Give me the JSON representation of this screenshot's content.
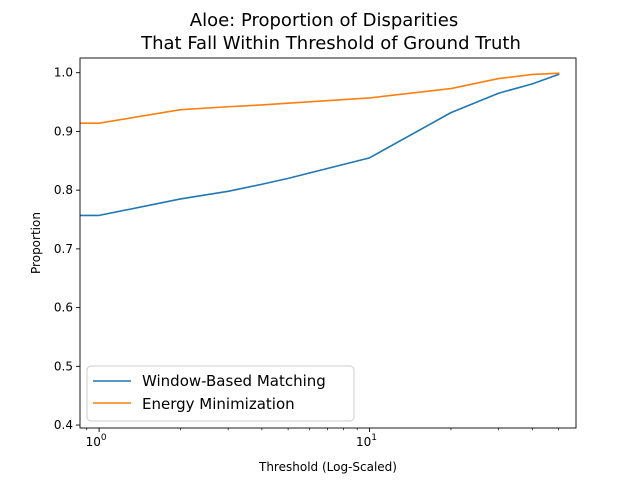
{
  "chart_data": {
    "type": "line",
    "title_lines": [
      "Aloe: Proportion of Disparities",
      "That Fall Within Threshold of Ground Truth"
    ],
    "xlabel": "Threshold (Log-Scaled)",
    "ylabel": "Proportion",
    "xscale": "log",
    "xlim": [
      0.85,
      58
    ],
    "ylim": [
      0.395,
      1.025
    ],
    "x_ticks": [
      {
        "value": 1,
        "base": "10",
        "exp": "0"
      },
      {
        "value": 10,
        "base": "10",
        "exp": "1"
      }
    ],
    "y_ticks": [
      {
        "value": 0.4,
        "label": "0.4"
      },
      {
        "value": 0.5,
        "label": "0.5"
      },
      {
        "value": 0.6,
        "label": "0.6"
      },
      {
        "value": 0.7,
        "label": "0.7"
      },
      {
        "value": 0.8,
        "label": "0.8"
      },
      {
        "value": 0.9,
        "label": "0.9"
      },
      {
        "value": 1.0,
        "label": "1.0"
      }
    ],
    "grid": false,
    "legend_position": "lower-left",
    "series": [
      {
        "name": "Window-Based Matching",
        "color": "#1f77b4",
        "x": [
          0,
          1,
          2,
          3,
          4,
          5,
          10,
          20,
          30,
          40,
          50
        ],
        "y": [
          0.757,
          0.757,
          0.785,
          0.798,
          0.81,
          0.82,
          0.855,
          0.932,
          0.965,
          0.981,
          0.997
        ]
      },
      {
        "name": "Energy Minimization",
        "color": "#ff7f0e",
        "x": [
          0,
          1,
          2,
          3,
          4,
          5,
          10,
          20,
          30,
          40,
          50
        ],
        "y": [
          0.914,
          0.914,
          0.937,
          0.942,
          0.945,
          0.948,
          0.957,
          0.973,
          0.99,
          0.997,
          0.999
        ]
      }
    ]
  }
}
